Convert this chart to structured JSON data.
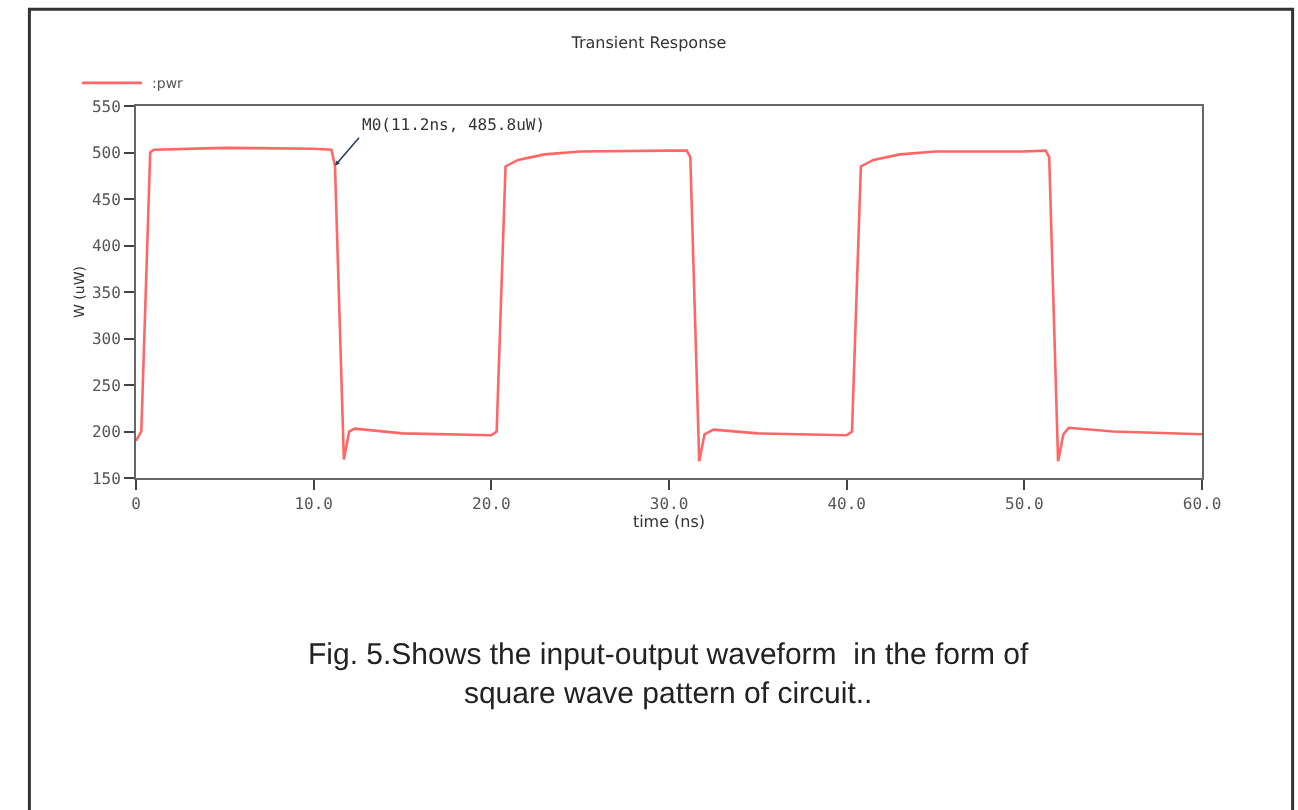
{
  "chart_data": {
    "type": "line",
    "title": "Transient Response",
    "xlabel": "time (ns)",
    "ylabel": "W (uW)",
    "x": [
      0,
      0.3,
      0.8,
      1.0,
      5,
      10,
      11.0,
      11.2,
      11.7,
      12.0,
      12.3,
      15,
      20.0,
      20.3,
      20.8,
      21.5,
      23,
      25,
      30,
      31.0,
      31.2,
      31.7,
      32.0,
      32.5,
      35,
      40.0,
      40.3,
      40.8,
      41.5,
      43,
      45,
      50,
      51.2,
      51.4,
      51.9,
      52.2,
      52.5,
      55,
      60
    ],
    "series": [
      {
        "name": ":pwr",
        "color": "#ff6666",
        "values": [
          190,
          200,
          500,
          503,
          505,
          504,
          503,
          485.8,
          170,
          200,
          203,
          198,
          196,
          200,
          485,
          492,
          498,
          501,
          502,
          502,
          495,
          168,
          197,
          202,
          198,
          196,
          200,
          485,
          492,
          498,
          501,
          501,
          502,
          495,
          168,
          197,
          204,
          200,
          197
        ]
      }
    ],
    "xlim": [
      0,
      60
    ],
    "xticks": [
      0,
      {
        "value": 10,
        "label": "10.0"
      },
      {
        "value": 20,
        "label": "20.0"
      },
      {
        "value": 30,
        "label": "30.0"
      },
      {
        "value": 40,
        "label": "40.0"
      },
      {
        "value": 50,
        "label": "50.0"
      },
      {
        "value": 60,
        "label": "60.0"
      }
    ],
    "ylim": [
      150,
      550
    ],
    "yticks": [
      150,
      200,
      250,
      300,
      350,
      400,
      450,
      500,
      550
    ],
    "legend": "top left",
    "marker": "none",
    "line_style": "solid",
    "annotations": [
      {
        "text": "M0(11.2ns, 485.8uW)",
        "x": 11.2,
        "y": 485.8
      },
      "Fig. 5.Shows the input-output waveform  in the form of square wave pattern of circuit.."
    ]
  }
}
